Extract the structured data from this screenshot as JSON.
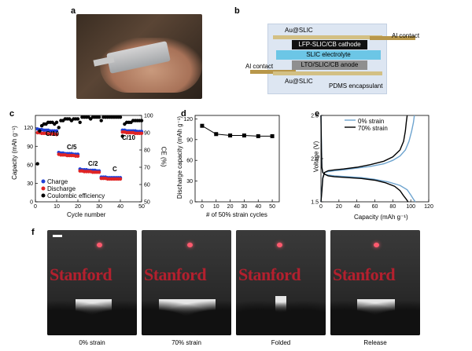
{
  "panels": {
    "a": "a",
    "b": "b",
    "c": "c",
    "d": "d",
    "e": "e",
    "f": "f"
  },
  "schematic": {
    "top_label": "Au@SLIC",
    "bottom_label": "Au@SLIC",
    "cathode": "LFP-SLIC/CB cathode",
    "electrolyte": "SLIC electrolyte",
    "anode": "LTO/SLIC/CB anode",
    "al_contact_right": "Al contact",
    "al_contact_left": "Al contact",
    "encapsulant": "PDMS encapsulant",
    "colors": {
      "cathode": "#111111",
      "electrolyte": "#6cc6e6",
      "anode": "#8f8f8f",
      "gold": "#b8974a",
      "background": "#dde6f2",
      "top": "#d3c084"
    }
  },
  "chart_data": [
    {
      "id": "c",
      "type": "scatter",
      "xlabel": "Cycle number",
      "ylabel": "Capacity (mAh g⁻¹)",
      "y2label": "CE (%)",
      "xlim": [
        0,
        50
      ],
      "ylim": [
        0,
        140
      ],
      "y2lim": [
        50,
        100
      ],
      "xticks": [
        "0",
        "10",
        "20",
        "30",
        "40",
        "50"
      ],
      "yticks": [
        "0",
        "30",
        "60",
        "90",
        "120"
      ],
      "y2ticks": [
        "50",
        "60",
        "70",
        "80",
        "90",
        "100"
      ],
      "rate_labels": [
        "C/10",
        "C/5",
        "C/2",
        "C",
        "C/10"
      ],
      "legend": [
        "Charge",
        "Discharge",
        "Coulombic efficiency"
      ],
      "series": [
        {
          "name": "Charge",
          "color": "#1f3fd6",
          "x": [
            1,
            2,
            3,
            4,
            5,
            6,
            7,
            8,
            9,
            10,
            11,
            12,
            13,
            14,
            15,
            16,
            17,
            18,
            19,
            20,
            21,
            22,
            23,
            24,
            25,
            26,
            27,
            28,
            29,
            30,
            31,
            32,
            33,
            34,
            35,
            36,
            37,
            38,
            39,
            40,
            41,
            42,
            43,
            44,
            45,
            46,
            47,
            48,
            49,
            50
          ],
          "values": [
            118,
            117,
            117,
            116,
            116,
            116,
            115,
            115,
            115,
            115,
            80,
            79,
            79,
            78,
            78,
            78,
            78,
            77,
            77,
            77,
            53,
            52,
            52,
            52,
            51,
            51,
            51,
            51,
            50,
            50,
            40,
            40,
            40,
            39,
            39,
            39,
            39,
            39,
            39,
            39,
            116,
            116,
            115,
            115,
            115,
            115,
            115,
            114,
            114,
            114
          ]
        },
        {
          "name": "Discharge",
          "color": "#e02424",
          "x": [
            1,
            2,
            3,
            4,
            5,
            6,
            7,
            8,
            9,
            10,
            11,
            12,
            13,
            14,
            15,
            16,
            17,
            18,
            19,
            20,
            21,
            22,
            23,
            24,
            25,
            26,
            27,
            28,
            29,
            30,
            31,
            32,
            33,
            34,
            35,
            36,
            37,
            38,
            39,
            40,
            41,
            42,
            43,
            44,
            45,
            46,
            47,
            48,
            49,
            50
          ],
          "values": [
            112,
            112,
            111,
            111,
            111,
            110,
            110,
            110,
            110,
            109,
            77,
            76,
            76,
            76,
            75,
            75,
            75,
            75,
            74,
            74,
            50,
            50,
            49,
            49,
            49,
            49,
            48,
            48,
            48,
            48,
            38,
            38,
            38,
            37,
            37,
            37,
            37,
            37,
            37,
            37,
            113,
            113,
            112,
            112,
            112,
            112,
            111,
            111,
            111,
            111
          ]
        },
        {
          "name": "Coulombic efficiency",
          "color": "#000000",
          "axis": "y2",
          "x": [
            1,
            2,
            3,
            4,
            5,
            6,
            7,
            8,
            9,
            10,
            11,
            12,
            13,
            14,
            15,
            16,
            17,
            18,
            19,
            20,
            21,
            22,
            23,
            24,
            25,
            26,
            27,
            28,
            29,
            30,
            31,
            32,
            33,
            34,
            35,
            36,
            37,
            38,
            39,
            40,
            41,
            42,
            43,
            44,
            45,
            46,
            47,
            48,
            49,
            50
          ],
          "values": [
            72,
            91,
            94,
            95,
            95,
            96,
            96,
            96,
            95,
            96,
            93,
            97,
            97,
            98,
            98,
            98,
            97,
            98,
            98,
            98,
            96,
            99,
            99,
            99,
            99,
            98,
            99,
            99,
            99,
            99,
            97,
            99,
            99,
            99,
            99,
            99,
            99,
            99,
            99,
            99,
            88,
            95,
            96,
            96,
            96,
            97,
            97,
            97,
            97,
            97
          ]
        }
      ]
    },
    {
      "id": "d",
      "type": "line",
      "xlabel": "# of 50% strain cycles",
      "ylabel": "Discharge capacity (mAh g⁻¹)",
      "xlim": [
        -5,
        55
      ],
      "ylim": [
        0,
        125
      ],
      "xticks": [
        "0",
        "10",
        "20",
        "30",
        "40",
        "50"
      ],
      "yticks": [
        "0",
        "30",
        "60",
        "90",
        "120"
      ],
      "series": [
        {
          "name": "Discharge capacity",
          "x": [
            0,
            10,
            20,
            30,
            40,
            50
          ],
          "values": [
            110,
            98,
            96,
            96,
            95,
            95
          ]
        }
      ]
    },
    {
      "id": "e",
      "type": "line",
      "xlabel": "Capacity (mAh g⁻¹)",
      "ylabel": "Voltage (V)",
      "xlim": [
        0,
        120
      ],
      "ylim": [
        1.5,
        2.5
      ],
      "xticks": [
        "0",
        "20",
        "40",
        "60",
        "80",
        "100",
        "120"
      ],
      "yticks": [
        "1.5",
        "2.0",
        "2.5"
      ],
      "legend": [
        "0% strain",
        "70% strain"
      ],
      "series": [
        {
          "name": "0% strain",
          "color": "#6ea4cf",
          "charge": {
            "x": [
              0,
              1,
              2,
              4,
              8,
              15,
              25,
              40,
              55,
              70,
              80,
              88,
              94,
              98,
              101,
              103,
              104
            ],
            "values": [
              1.5,
              1.65,
              1.78,
              1.84,
              1.85,
              1.86,
              1.87,
              1.89,
              1.91,
              1.94,
              1.98,
              2.03,
              2.1,
              2.2,
              2.32,
              2.42,
              2.5
            ]
          },
          "discharge": {
            "x": [
              0,
              0.5,
              1,
              2,
              4,
              8,
              15,
              30,
              45,
              60,
              75,
              88,
              96,
              100,
              103,
              105
            ],
            "values": [
              2.5,
              2.2,
              1.9,
              1.84,
              1.82,
              1.81,
              1.8,
              1.79,
              1.78,
              1.76,
              1.73,
              1.69,
              1.64,
              1.58,
              1.53,
              1.5
            ]
          }
        },
        {
          "name": "70% strain",
          "color": "#000000",
          "charge": {
            "x": [
              0,
              1,
              2,
              4,
              8,
              15,
              25,
              40,
              55,
              70,
              80,
              88,
              92,
              94,
              95,
              96
            ],
            "values": [
              1.5,
              1.62,
              1.77,
              1.84,
              1.86,
              1.87,
              1.88,
              1.9,
              1.93,
              1.97,
              2.02,
              2.1,
              2.2,
              2.32,
              2.42,
              2.5
            ]
          },
          "discharge": {
            "x": [
              0,
              0.5,
              1,
              2,
              4,
              8,
              15,
              30,
              45,
              60,
              72,
              82,
              88,
              92,
              95,
              97
            ],
            "values": [
              2.5,
              2.1,
              1.9,
              1.84,
              1.82,
              1.8,
              1.79,
              1.78,
              1.77,
              1.75,
              1.72,
              1.68,
              1.63,
              1.57,
              1.53,
              1.5
            ]
          }
        }
      ]
    }
  ],
  "demo_captions": [
    "0% strain",
    "70% strain",
    "Folded",
    "Release"
  ],
  "demo_sign": "Stanford"
}
